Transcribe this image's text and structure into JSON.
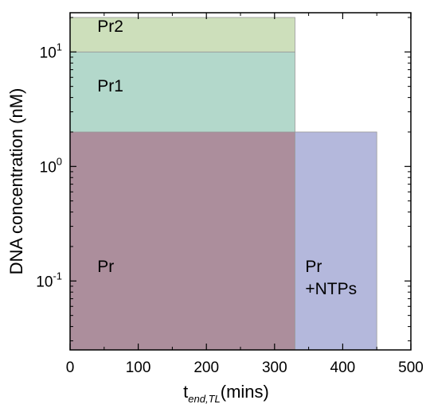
{
  "chart_data": {
    "type": "range-rectangles",
    "ylabel": "DNA concentration (nM)",
    "xlabel": {
      "base": "t",
      "subscript": "end,TL",
      "unit": "(mins)"
    },
    "xlim": [
      0,
      500
    ],
    "ylim": [
      0.025,
      22
    ],
    "yscale": "log",
    "x_ticks": [
      {
        "value": 0,
        "label": "0"
      },
      {
        "value": 100,
        "label": "100"
      },
      {
        "value": 200,
        "label": "200"
      },
      {
        "value": 300,
        "label": "300"
      },
      {
        "value": 400,
        "label": "400"
      },
      {
        "value": 500,
        "label": "500"
      }
    ],
    "y_ticks": [
      {
        "value": 0.1,
        "base": "10",
        "exp": "-1"
      },
      {
        "value": 1,
        "base": "10",
        "exp": "0"
      },
      {
        "value": 10,
        "base": "10",
        "exp": "1"
      }
    ],
    "regions": [
      {
        "name": "Pr",
        "label_lines": [
          "Pr"
        ],
        "x": [
          0,
          330
        ],
        "y": [
          0.025,
          2
        ],
        "color": "#ac8e9c",
        "label_at": {
          "x": 40,
          "y": 0.12
        }
      },
      {
        "name": "Pr1",
        "label_lines": [
          "Pr1"
        ],
        "x": [
          0,
          330
        ],
        "y": [
          2,
          10
        ],
        "color": "#b3d8cb",
        "label_at": {
          "x": 40,
          "y": 4.5
        }
      },
      {
        "name": "Pr2",
        "label_lines": [
          "Pr2"
        ],
        "x": [
          0,
          330
        ],
        "y": [
          10,
          20
        ],
        "color": "#cddfbb",
        "label_at": {
          "x": 40,
          "y": 15
        }
      },
      {
        "name": "Pr +NTPs",
        "label_lines": [
          "Pr",
          "+NTPs"
        ],
        "x": [
          330,
          450
        ],
        "y": [
          0.025,
          2
        ],
        "color": "#b4b8dc",
        "label_at": {
          "x": 345,
          "y": 0.12
        }
      }
    ]
  }
}
